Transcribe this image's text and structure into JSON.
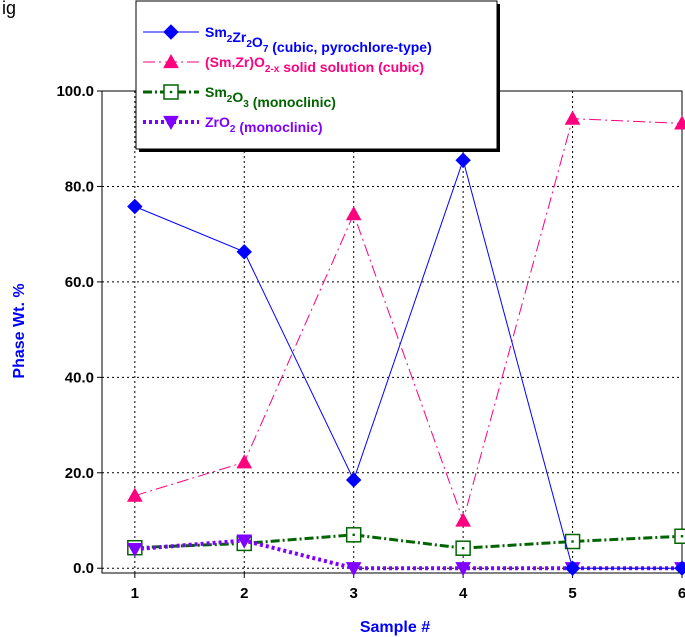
{
  "header_text": "ig",
  "chart_data": {
    "type": "line",
    "x": [
      1,
      2,
      3,
      4,
      5,
      6
    ],
    "xlabel": "Sample #",
    "ylabel": "Phase Wt. %",
    "xlim": [
      0.7,
      6
    ],
    "ylim": [
      -1,
      100
    ],
    "x_ticks": [
      "1",
      "2",
      "3",
      "4",
      "5",
      "6"
    ],
    "y_ticks": [
      "0.0",
      "20.0",
      "40.0",
      "60.0",
      "80.0",
      "100.0"
    ],
    "y_tick_values": [
      0,
      20,
      40,
      60,
      80,
      100
    ],
    "grid": true,
    "legend_position": "top-left",
    "series": [
      {
        "name": "Sm2Zr2O7 (cubic, pyrochlore-type)",
        "legend_parts": [
          [
            "Sm",
            ""
          ],
          [
            "2",
            "sub"
          ],
          [
            "Zr",
            ""
          ],
          [
            "2",
            "sub"
          ],
          [
            "O",
            ""
          ],
          [
            "7",
            "sub"
          ],
          [
            " (cubic, pyrochlore-type)",
            ""
          ]
        ],
        "values": [
          75.8,
          66.3,
          18.5,
          85.5,
          0.0,
          0.0
        ],
        "color": "#0000ff",
        "marker": "diamond",
        "line": "solid"
      },
      {
        "name": "(Sm,Zr)O2-x solid solution (cubic)",
        "legend_parts": [
          [
            "(Sm,Zr)O",
            ""
          ],
          [
            "2-x",
            "sub"
          ],
          [
            " solid solution (cubic)",
            ""
          ]
        ],
        "values": [
          15.2,
          22.2,
          74.2,
          10.0,
          94.2,
          93.2
        ],
        "color": "#ff007f",
        "marker": "triangle-up",
        "line": "dashdot"
      },
      {
        "name": "Sm2O3 (monoclinic)",
        "legend_parts": [
          [
            "Sm",
            ""
          ],
          [
            "2",
            "sub"
          ],
          [
            "O",
            ""
          ],
          [
            "3",
            "sub"
          ],
          [
            " (monoclinic)",
            ""
          ]
        ],
        "values": [
          4.3,
          5.2,
          7.0,
          4.2,
          5.6,
          6.7
        ],
        "color": "#006400",
        "marker": "square-open",
        "line": "dashdot-thick"
      },
      {
        "name": "ZrO2 (monoclinic)",
        "legend_parts": [
          [
            "ZrO",
            ""
          ],
          [
            "2",
            "sub"
          ],
          [
            " (monoclinic)",
            ""
          ]
        ],
        "values": [
          4.0,
          5.8,
          0.0,
          0.0,
          0.0,
          0.0
        ],
        "color": "#7f00ff",
        "marker": "triangle-down",
        "line": "dotted-thick"
      }
    ]
  }
}
